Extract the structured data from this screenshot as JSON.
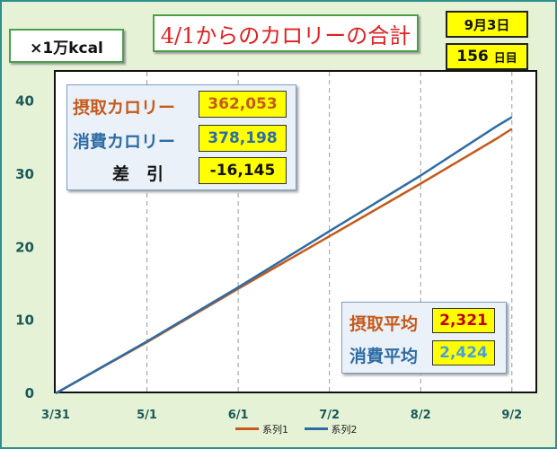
{
  "header": {
    "unit": "×1万kcal",
    "title": "4/1からのカロリーの合計",
    "date": "9月3日",
    "days_value": "156",
    "days_unit": "日目"
  },
  "totals": {
    "intake_label": "摂取カロリー",
    "intake_value": "362,053",
    "burn_label": "消費カロリー",
    "burn_value": "378,198",
    "diff_label": "差　引",
    "diff_value": "-16,145"
  },
  "averages": {
    "intake_label": "摂取平均",
    "intake_value": "2,321",
    "burn_label": "消費平均",
    "burn_value": "2,424"
  },
  "colors": {
    "series1": "#c55a1a",
    "series2": "#2e6ca4",
    "intake_text": "#c55a1a",
    "burn_text": "#2e6ca4",
    "diff_text": "#111111",
    "avg_intake_value": "#c00000",
    "avg_burn_value": "#4aa0d8"
  },
  "chart_data": {
    "type": "line",
    "x_ticks": [
      "3/31",
      "5/1",
      "6/1",
      "7/2",
      "8/2",
      "9/2"
    ],
    "x_tick_days": [
      0,
      31,
      62,
      93,
      124,
      155
    ],
    "xlim": [
      0,
      163
    ],
    "ylim": [
      0,
      44
    ],
    "y_ticks": [
      0,
      10,
      20,
      30,
      40
    ],
    "grid": "vertical dashed",
    "legend_position": "bottom",
    "series": [
      {
        "name": "系列1",
        "x": [
          0,
          31,
          62,
          93,
          124,
          150,
          155
        ],
        "values": [
          0,
          7.0,
          14.3,
          21.5,
          28.7,
          34.9,
          36.2
        ]
      },
      {
        "name": "系列2",
        "x": [
          0,
          31,
          62,
          93,
          124,
          150,
          155
        ],
        "values": [
          0,
          7.1,
          14.5,
          22.2,
          29.8,
          36.6,
          37.8
        ]
      }
    ]
  }
}
